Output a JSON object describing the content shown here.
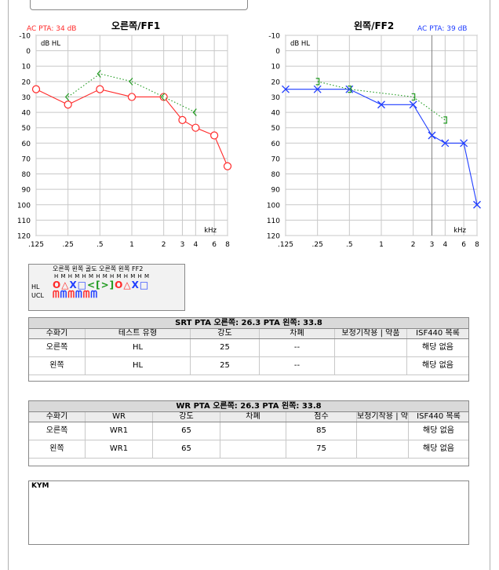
{
  "right_chart": {
    "title": "오른쪽/FF1",
    "pta": "AC PTA: 34 dB",
    "unit": "dB HL",
    "freq_unit": "kHz"
  },
  "left_chart": {
    "title": "왼쪽/FF2",
    "pta": "AC PTA: 39 dB",
    "unit": "dB HL",
    "freq_unit": "kHz"
  },
  "colors": {
    "right": "#ff2a2a",
    "left": "#1f3dff",
    "bone": "#1f9a1f",
    "grid": "#c8c8c8"
  },
  "chart_data": [
    {
      "type": "line",
      "title": "오른쪽/FF1",
      "ylabel": "dB HL",
      "xlabel": "kHz",
      "x_scale": "log",
      "y_inverted": true,
      "ylim": [
        -10,
        120
      ],
      "x_ticks": [
        ".125",
        ".25",
        ".5",
        "1",
        "2",
        "3",
        "4",
        "6",
        "8"
      ],
      "x_values": [
        0.125,
        0.25,
        0.5,
        1,
        2,
        3,
        4,
        6,
        8
      ],
      "y_ticks": [
        -10,
        0,
        10,
        20,
        30,
        40,
        50,
        60,
        70,
        80,
        90,
        100,
        110,
        120
      ],
      "series": [
        {
          "name": "",
          "marker": "circle",
          "color": "#ff2a2a",
          "x": [
            0.125,
            0.25,
            0.5,
            1,
            2,
            3,
            4,
            6,
            8
          ],
          "y": [
            25,
            35,
            25,
            30,
            30,
            45,
            50,
            55,
            75
          ]
        },
        {
          "name": "",
          "marker": "bracket-left",
          "color": "#1f9a1f",
          "dotted": true,
          "x": [
            0.25,
            0.5,
            1,
            2,
            4
          ],
          "y": [
            30,
            15,
            20,
            30,
            40
          ]
        }
      ]
    },
    {
      "type": "line",
      "title": "왼쪽/FF2",
      "ylabel": "dB HL",
      "xlabel": "kHz",
      "x_scale": "log",
      "y_inverted": true,
      "ylim": [
        -10,
        120
      ],
      "x_ticks": [
        ".125",
        ".25",
        ".5",
        "1",
        "2",
        "3",
        "4",
        "6",
        "8"
      ],
      "x_values": [
        0.125,
        0.25,
        0.5,
        1,
        2,
        3,
        4,
        6,
        8
      ],
      "y_ticks": [
        -10,
        0,
        10,
        20,
        30,
        40,
        50,
        60,
        70,
        80,
        90,
        100,
        110,
        120
      ],
      "series": [
        {
          "name": "",
          "marker": "cross",
          "color": "#1f3dff",
          "x": [
            0.125,
            0.25,
            0.5,
            1,
            2,
            3,
            4,
            6,
            8
          ],
          "y": [
            25,
            25,
            25,
            35,
            35,
            55,
            60,
            60,
            100
          ]
        },
        {
          "name": "",
          "marker": "bracket-right",
          "color": "#1f9a1f",
          "dotted": true,
          "x": [
            0.25,
            0.5,
            2,
            4
          ],
          "y": [
            20,
            25,
            30,
            45
          ]
        }
      ]
    }
  ],
  "legend": {
    "header": [
      "오른쪽",
      "왼쪽",
      "골도",
      "오른쪽",
      "왼쪽",
      "FF2"
    ],
    "hm": "H M H M H M H M H M H M H M",
    "row_hl": "HL",
    "row_ucl": "UCL",
    "hl_symbols": [
      {
        "g": "O",
        "c": "#ff2a2a"
      },
      {
        "g": "△",
        "c": "#ff2a2a"
      },
      {
        "g": "X",
        "c": "#1f3dff"
      },
      {
        "g": "□",
        "c": "#1f3dff"
      },
      {
        "g": "<",
        "c": "#1f9a1f"
      },
      {
        "g": "[",
        "c": "#1f9a1f"
      },
      {
        "g": ">",
        "c": "#1f9a1f"
      },
      {
        "g": "]",
        "c": "#1f9a1f"
      },
      {
        "g": "O",
        "c": "#ff2a2a"
      },
      {
        "g": "△",
        "c": "#ff2a2a"
      },
      {
        "g": "X",
        "c": "#1f3dff"
      },
      {
        "g": "□",
        "c": "#1f3dff"
      }
    ],
    "ucl_symbols": [
      {
        "g": "ᗰ",
        "c": "#ff2a2a"
      },
      {
        "g": "ᗰ",
        "c": "#1f3dff"
      },
      {
        "g": "ᗰ",
        "c": "#ff2a2a"
      },
      {
        "g": "ᗰ",
        "c": "#1f3dff"
      },
      {
        "g": "ᗰ",
        "c": "#ff2a2a"
      },
      {
        "g": "ᗰ",
        "c": "#1f3dff"
      }
    ]
  },
  "srt_table": {
    "title": "SRT   PTA 오른쪽: 26.3  PTA 왼쪽: 33.8",
    "headers": [
      "수화기",
      "테스트 유형",
      "강도",
      "차폐",
      "보청기착용 | 약품",
      "ISF440 목록"
    ],
    "rows": [
      [
        "오른쪽",
        "HL",
        "25",
        "--",
        "",
        "해당 없음"
      ],
      [
        "왼쪽",
        "HL",
        "25",
        "--",
        "",
        "해당 없음"
      ]
    ]
  },
  "wr_table": {
    "title": "WR   PTA 오른쪽: 26.3  PTA 왼쪽: 33.8",
    "headers": [
      "수화기",
      "WR",
      "강도",
      "차폐",
      "점수",
      "보청기착용 | 약",
      "ISF440 목록"
    ],
    "rows": [
      [
        "오른쪽",
        "WR1",
        "65",
        "",
        "85",
        "",
        "해당 없음"
      ],
      [
        "왼쪽",
        "WR1",
        "65",
        "",
        "75",
        "",
        "해당 없음"
      ]
    ]
  },
  "notes": {
    "label": "KYM"
  }
}
